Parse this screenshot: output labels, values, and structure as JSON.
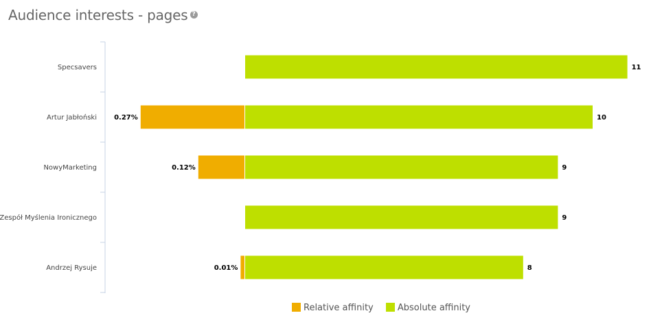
{
  "header": {
    "title": "Audience interests - pages",
    "help_icon": "question-circle-icon"
  },
  "colors": {
    "relative": "#f0ad00",
    "absolute": "#bedf00"
  },
  "legend": {
    "relative_label": "Relative affinity",
    "absolute_label": "Absolute affinity"
  },
  "chart_data": {
    "type": "bar",
    "orientation": "horizontal",
    "categories": [
      "Specsavers",
      "Artur Jabłoński",
      "NowyMarketing",
      "Zespół Myślenia Ironicznego",
      "Andrzej Rysuje"
    ],
    "series": [
      {
        "name": "Relative affinity",
        "values": [
          null,
          0.27,
          0.12,
          null,
          0.01
        ],
        "labels": [
          "",
          "0.27%",
          "0.12%",
          "",
          "0.01%"
        ]
      },
      {
        "name": "Absolute affinity",
        "values": [
          11,
          10,
          9,
          9,
          8
        ],
        "labels": [
          "11",
          "10",
          "9",
          "9",
          "8"
        ]
      }
    ],
    "legend_position": "bottom"
  }
}
